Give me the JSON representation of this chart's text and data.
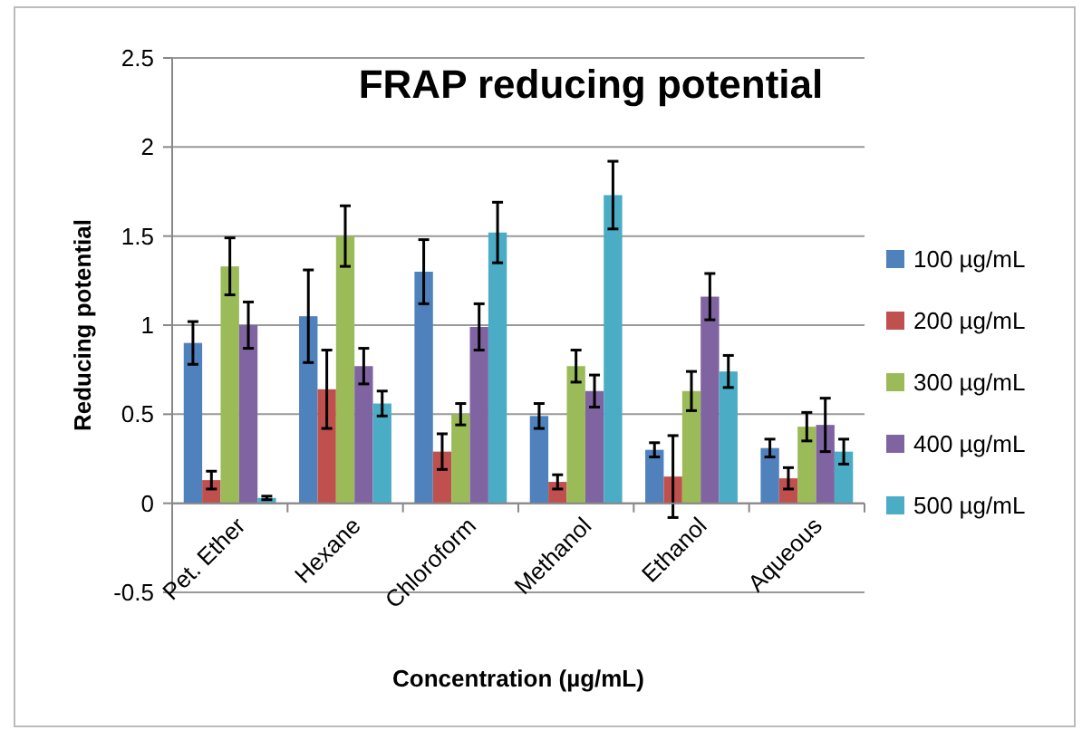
{
  "chart_data": {
    "type": "bar",
    "title": "FRAP reducing potential",
    "xlabel": "Concentration (µg/mL)",
    "ylabel": "Reducing potential",
    "categories": [
      "Pet. Ether",
      "Hexane",
      "Chloroform",
      "Methanol",
      "Ethanol",
      "Aqueous"
    ],
    "series": [
      {
        "name": "100 µg/mL",
        "color": "#4f81bd",
        "values": [
          0.9,
          1.05,
          1.3,
          0.49,
          0.3,
          0.31
        ],
        "errors": [
          0.12,
          0.26,
          0.18,
          0.07,
          0.04,
          0.05
        ]
      },
      {
        "name": "200 µg/mL",
        "color": "#c0504d",
        "values": [
          0.13,
          0.64,
          0.29,
          0.12,
          0.15,
          0.14
        ],
        "errors": [
          0.05,
          0.22,
          0.1,
          0.04,
          0.23,
          0.06
        ]
      },
      {
        "name": "300 µg/mL",
        "color": "#9bbb59",
        "values": [
          1.33,
          1.5,
          0.5,
          0.77,
          0.63,
          0.43
        ],
        "errors": [
          0.16,
          0.17,
          0.06,
          0.09,
          0.11,
          0.08
        ]
      },
      {
        "name": "400 µg/mL",
        "color": "#8064a2",
        "values": [
          1.0,
          0.77,
          0.99,
          0.63,
          1.16,
          0.44
        ],
        "errors": [
          0.13,
          0.1,
          0.13,
          0.09,
          0.13,
          0.15
        ]
      },
      {
        "name": "500 µg/mL",
        "color": "#4bacc6",
        "values": [
          0.03,
          0.56,
          1.52,
          1.73,
          0.74,
          0.29
        ],
        "errors": [
          0.01,
          0.07,
          0.17,
          0.19,
          0.09,
          0.07
        ]
      }
    ],
    "ylim": [
      -0.5,
      2.5
    ],
    "yticks": [
      -0.5,
      0,
      0.5,
      1,
      1.5,
      2,
      2.5
    ],
    "grid": "y",
    "legend": "right"
  }
}
